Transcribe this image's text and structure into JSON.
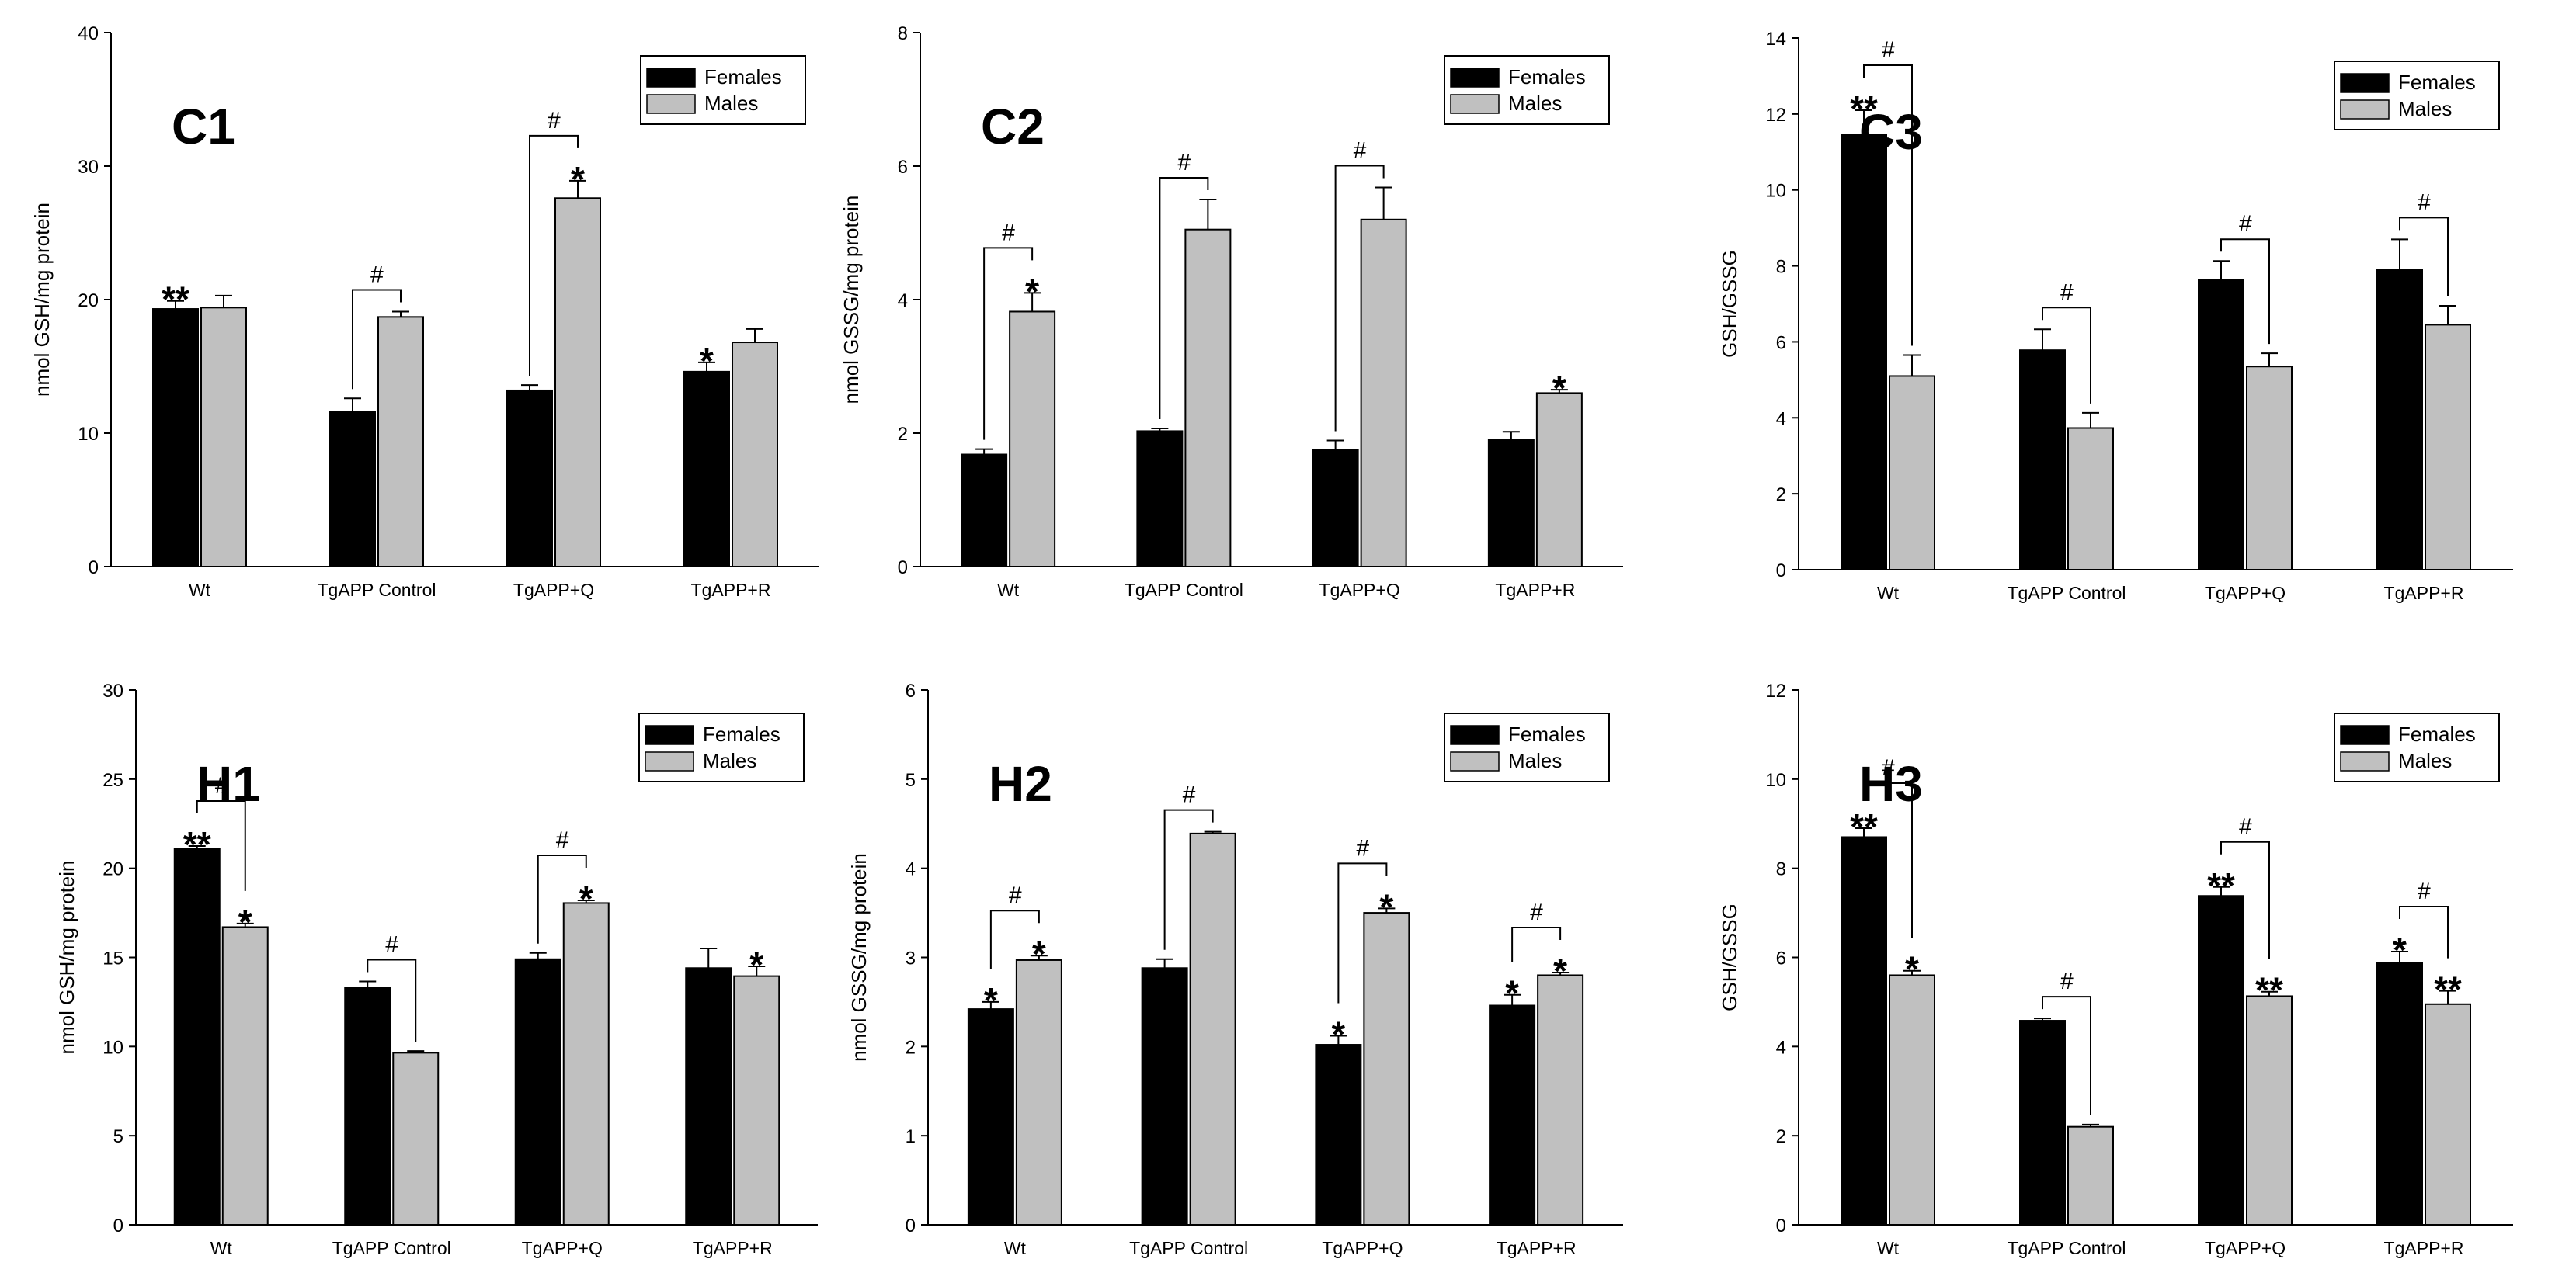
{
  "figure": {
    "legend": {
      "females": "Females",
      "males": "Males",
      "placement": "top-right"
    },
    "colors": {
      "females": "#000000",
      "males": "#c0c0c0",
      "axis": "#000000"
    }
  },
  "chart_data": [
    {
      "type": "bar",
      "panel": "C1",
      "ylabel": "nmol GSH/mg protein",
      "ylim": [
        0,
        40
      ],
      "yticks": [
        0,
        10,
        20,
        30,
        40
      ],
      "categories": [
        "Wt",
        "TgAPP Control",
        "TgAPP+Q",
        "TgAPP+R"
      ],
      "series": [
        {
          "name": "Females",
          "values": [
            19.3,
            11.6,
            13.2,
            14.6
          ],
          "errors": [
            0.6,
            1.0,
            0.4,
            0.7
          ],
          "marks": [
            "**",
            "",
            "",
            "*"
          ]
        },
        {
          "name": "Males",
          "values": [
            19.4,
            18.7,
            27.6,
            16.8
          ],
          "errors": [
            0.9,
            0.4,
            1.3,
            1.0
          ],
          "marks": [
            "",
            "",
            "*",
            ""
          ]
        }
      ],
      "brackets": [
        {
          "category": 1,
          "label": "#"
        },
        {
          "category": 2,
          "label": "#"
        }
      ],
      "legend": "top-right"
    },
    {
      "type": "bar",
      "panel": "C2",
      "ylabel": "nmol GSSG/mg protein",
      "ylim": [
        0,
        8
      ],
      "yticks": [
        0,
        2,
        4,
        6,
        8
      ],
      "categories": [
        "Wt",
        "TgAPP Control",
        "TgAPP+Q",
        "TgAPP+R"
      ],
      "series": [
        {
          "name": "Females",
          "values": [
            1.68,
            2.03,
            1.75,
            1.9
          ],
          "errors": [
            0.08,
            0.04,
            0.14,
            0.12
          ],
          "marks": [
            "",
            "",
            "",
            ""
          ]
        },
        {
          "name": "Males",
          "values": [
            3.82,
            5.05,
            5.2,
            2.6
          ],
          "errors": [
            0.28,
            0.45,
            0.48,
            0.05
          ],
          "marks": [
            "*",
            "",
            "",
            "*"
          ]
        }
      ],
      "brackets": [
        {
          "category": 0,
          "label": "#"
        },
        {
          "category": 1,
          "label": "#"
        },
        {
          "category": 2,
          "label": "#"
        }
      ],
      "legend": "top-right"
    },
    {
      "type": "bar",
      "panel": "C3",
      "ylabel": "GSH/GSSG",
      "ylim": [
        0,
        14
      ],
      "yticks": [
        0,
        2,
        4,
        6,
        8,
        10,
        12,
        14
      ],
      "categories": [
        "Wt",
        "TgAPP Control",
        "TgAPP+Q",
        "TgAPP+R"
      ],
      "series": [
        {
          "name": "Females",
          "values": [
            11.45,
            5.78,
            7.63,
            7.9
          ],
          "errors": [
            0.65,
            0.55,
            0.5,
            0.8
          ],
          "marks": [
            "**",
            "",
            "",
            ""
          ]
        },
        {
          "name": "Males",
          "values": [
            5.1,
            3.73,
            5.35,
            6.45
          ],
          "errors": [
            0.55,
            0.4,
            0.35,
            0.5
          ],
          "marks": [
            "",
            "",
            "",
            ""
          ]
        }
      ],
      "brackets": [
        {
          "category": 0,
          "label": "#"
        },
        {
          "category": 1,
          "label": "#"
        },
        {
          "category": 2,
          "label": "#"
        },
        {
          "category": 3,
          "label": "#"
        }
      ],
      "legend": "top-right"
    },
    {
      "type": "bar",
      "panel": "H1",
      "ylabel": "nmol GSH/mg protein",
      "ylim": [
        0,
        30
      ],
      "yticks": [
        0,
        5,
        10,
        15,
        20,
        25,
        30
      ],
      "categories": [
        "Wt",
        "TgAPP Control",
        "TgAPP+Q",
        "TgAPP+R"
      ],
      "series": [
        {
          "name": "Females",
          "values": [
            21.1,
            13.3,
            14.9,
            14.4
          ],
          "errors": [
            0.15,
            0.35,
            0.35,
            1.1
          ],
          "marks": [
            "**",
            "",
            "",
            ""
          ]
        },
        {
          "name": "Males",
          "values": [
            16.7,
            9.65,
            18.05,
            13.95
          ],
          "errors": [
            0.2,
            0.1,
            0.15,
            0.55
          ],
          "marks": [
            "*",
            "",
            "*",
            "*"
          ]
        }
      ],
      "brackets": [
        {
          "category": 0,
          "label": "#"
        },
        {
          "category": 1,
          "label": "#"
        },
        {
          "category": 2,
          "label": "#"
        }
      ],
      "legend": "top-right"
    },
    {
      "type": "bar",
      "panel": "H2",
      "ylabel": "nmol GSSG/mg protein",
      "ylim": [
        0,
        6
      ],
      "yticks": [
        0,
        1,
        2,
        3,
        4,
        5,
        6
      ],
      "categories": [
        "Wt",
        "TgAPP Control",
        "TgAPP+Q",
        "TgAPP+R"
      ],
      "series": [
        {
          "name": "Females",
          "values": [
            2.42,
            2.88,
            2.02,
            2.46
          ],
          "errors": [
            0.08,
            0.1,
            0.1,
            0.12
          ],
          "marks": [
            "*",
            "",
            "*",
            "*"
          ]
        },
        {
          "name": "Males",
          "values": [
            2.97,
            4.39,
            3.5,
            2.8
          ],
          "errors": [
            0.05,
            0.02,
            0.05,
            0.03
          ],
          "marks": [
            "*",
            "",
            "*",
            "*"
          ]
        }
      ],
      "brackets": [
        {
          "category": 0,
          "label": "#"
        },
        {
          "category": 1,
          "label": "#"
        },
        {
          "category": 2,
          "label": "#"
        },
        {
          "category": 3,
          "label": "#"
        }
      ],
      "legend": "top-right"
    },
    {
      "type": "bar",
      "panel": "H3",
      "ylabel": "GSH/GSSG",
      "ylim": [
        0,
        12
      ],
      "yticks": [
        0,
        2,
        4,
        6,
        8,
        10,
        12
      ],
      "categories": [
        "Wt",
        "TgAPP Control",
        "TgAPP+Q",
        "TgAPP+R"
      ],
      "series": [
        {
          "name": "Females",
          "values": [
            8.7,
            4.58,
            7.38,
            5.88
          ],
          "errors": [
            0.2,
            0.05,
            0.2,
            0.25
          ],
          "marks": [
            "**",
            "",
            "**",
            "*"
          ]
        },
        {
          "name": "Males",
          "values": [
            5.6,
            2.2,
            5.13,
            4.95
          ],
          "errors": [
            0.1,
            0.05,
            0.1,
            0.3
          ],
          "marks": [
            "*",
            "",
            "**",
            "**"
          ]
        }
      ],
      "brackets": [
        {
          "category": 0,
          "label": "#"
        },
        {
          "category": 1,
          "label": "#"
        },
        {
          "category": 2,
          "label": "#"
        },
        {
          "category": 3,
          "label": "#"
        }
      ],
      "legend": "top-right"
    }
  ]
}
